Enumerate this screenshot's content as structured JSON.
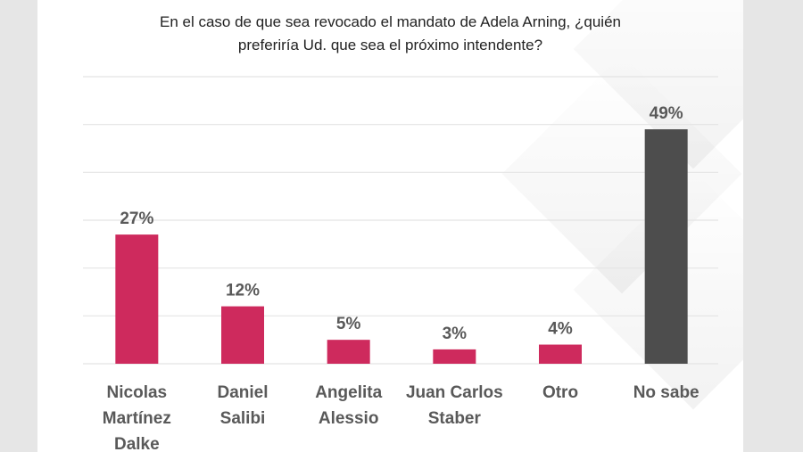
{
  "chart_data": {
    "type": "bar",
    "title_lines": [
      "En el caso de que sea revocado el mandato de Adela Arning, ¿quién",
      "preferiría Ud. que sea el próximo intendente?"
    ],
    "categories": [
      [
        "Nicolas",
        "Martínez",
        "Dalke"
      ],
      [
        "Daniel",
        "Salibi"
      ],
      [
        "Angelita",
        "Alessio"
      ],
      [
        "Juan Carlos",
        "Staber"
      ],
      [
        "Otro"
      ],
      [
        "No sabe"
      ]
    ],
    "values": [
      27,
      12,
      5,
      3,
      4,
      49
    ],
    "data_labels": [
      "27%",
      "12%",
      "5%",
      "3%",
      "4%",
      "49%"
    ],
    "colors": [
      "#ce2a5d",
      "#ce2a5d",
      "#ce2a5d",
      "#ce2a5d",
      "#ce2a5d",
      "#4d4d4d"
    ],
    "ylim": [
      0,
      60
    ],
    "gridlines": [
      0,
      10,
      20,
      30,
      40,
      50,
      60
    ],
    "grid": true,
    "xlabel": "",
    "ylabel": ""
  }
}
